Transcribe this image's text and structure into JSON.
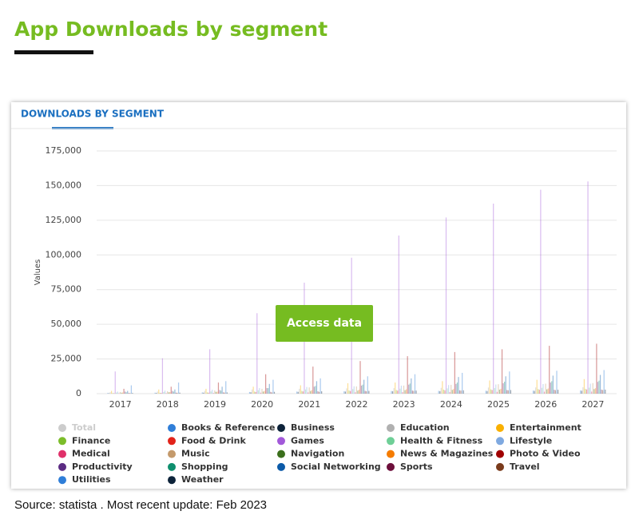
{
  "header": {
    "title": "App Downloads by segment"
  },
  "chart_data": {
    "type": "bar",
    "tab_title": "DOWNLOADS BY SEGMENT",
    "ylabel": "Values",
    "categories": [
      "2017",
      "2018",
      "2019",
      "2020",
      "2021",
      "2022",
      "2023",
      "2024",
      "2025",
      "2026",
      "2027"
    ],
    "ylim": [
      0,
      175000
    ],
    "yticks": [
      0,
      {
        "value": 25000,
        "label": "25,000"
      },
      {
        "value": 50000,
        "label": "50,000"
      },
      {
        "value": 75000,
        "label": "75,000"
      },
      {
        "value": 100000,
        "label": "100,000"
      },
      {
        "value": 125000,
        "label": "125,000"
      },
      {
        "value": 150000,
        "label": "150,000"
      },
      {
        "value": 175000,
        "label": "175,000"
      }
    ],
    "grid": true,
    "series": [
      {
        "name": "Total",
        "color": "#cccccc",
        "visible": false,
        "values": [
          null,
          null,
          null,
          null,
          null,
          null,
          null,
          null,
          null,
          null,
          null
        ]
      },
      {
        "name": "Books & Reference",
        "color": "#2f7ed8",
        "values": [
          500,
          700,
          900,
          1200,
          1500,
          1700,
          1900,
          2000,
          2100,
          2200,
          2300
        ]
      },
      {
        "name": "Business",
        "color": "#0d233a",
        "values": [
          300,
          500,
          700,
          1000,
          1300,
          1500,
          1700,
          1800,
          1900,
          2000,
          2100
        ]
      },
      {
        "name": "Education",
        "color": "#b0b0b0",
        "values": [
          1000,
          1500,
          2000,
          3000,
          3500,
          3800,
          4000,
          4200,
          4400,
          4500,
          4600
        ]
      },
      {
        "name": "Entertainment",
        "color": "#f9b000",
        "values": [
          2000,
          3000,
          3500,
          5000,
          6000,
          7500,
          8000,
          9000,
          9500,
          10000,
          10500
        ]
      },
      {
        "name": "Finance",
        "color": "#7cbd2a",
        "values": [
          400,
          600,
          900,
          1500,
          2000,
          2300,
          2600,
          2900,
          3100,
          3300,
          3500
        ]
      },
      {
        "name": "Food & Drink",
        "color": "#e2231a",
        "values": [
          300,
          500,
          700,
          1200,
          1600,
          1900,
          2200,
          2400,
          2600,
          2800,
          3000
        ]
      },
      {
        "name": "Games",
        "color": "#a259d9",
        "values": [
          16000,
          25500,
          32000,
          58000,
          80000,
          98000,
          114000,
          127000,
          137000,
          147000,
          153000
        ]
      },
      {
        "name": "Health & Fitness",
        "color": "#6fcf97",
        "values": [
          800,
          1200,
          1600,
          2500,
          3000,
          3300,
          3600,
          3800,
          4000,
          4200,
          4300
        ]
      },
      {
        "name": "Lifestyle",
        "color": "#7fa9e0",
        "values": [
          1500,
          2200,
          2800,
          4000,
          4800,
          5300,
          5800,
          6200,
          6600,
          6900,
          7200
        ]
      },
      {
        "name": "Medical",
        "color": "#e0306a",
        "values": [
          300,
          400,
          500,
          700,
          900,
          1000,
          1100,
          1200,
          1300,
          1400,
          1500
        ]
      },
      {
        "name": "Music",
        "color": "#c49a6c",
        "values": [
          1200,
          1800,
          2300,
          3500,
          4500,
          5200,
          5800,
          6300,
          6800,
          7200,
          7600
        ]
      },
      {
        "name": "Navigation",
        "color": "#3b6f1c",
        "values": [
          700,
          1000,
          1300,
          1500,
          1900,
          2200,
          2500,
          2700,
          2900,
          3100,
          3300
        ]
      },
      {
        "name": "News & Magazines",
        "color": "#f57c00",
        "values": [
          800,
          1100,
          1400,
          2000,
          2500,
          2800,
          3100,
          3300,
          3500,
          3700,
          3900
        ]
      },
      {
        "name": "Photo & Video",
        "color": "#a00000",
        "values": [
          3500,
          5000,
          8000,
          14000,
          19500,
          23500,
          27000,
          30000,
          32000,
          34500,
          36000
        ]
      },
      {
        "name": "Productivity",
        "color": "#5b2c83",
        "values": [
          1500,
          2000,
          2600,
          4000,
          5000,
          5800,
          6500,
          7000,
          7500,
          8000,
          8500
        ]
      },
      {
        "name": "Shopping",
        "color": "#0f8f6e",
        "values": [
          1000,
          1500,
          2200,
          4000,
          5500,
          6500,
          7300,
          8000,
          8600,
          9000,
          9400
        ]
      },
      {
        "name": "Social Networking",
        "color": "#0b5aa8",
        "values": [
          2000,
          3000,
          5000,
          7000,
          9000,
          10000,
          11000,
          12000,
          12500,
          13000,
          13500
        ]
      },
      {
        "name": "Sports",
        "color": "#6d0f3b",
        "values": [
          500,
          700,
          900,
          1300,
          1700,
          2000,
          2200,
          2400,
          2600,
          2800,
          2900
        ]
      },
      {
        "name": "Travel",
        "color": "#7a3b1c",
        "values": [
          400,
          600,
          800,
          900,
          1300,
          1700,
          2000,
          2200,
          2400,
          2500,
          2600
        ]
      },
      {
        "name": "Utilities",
        "color": "#2f7ed8",
        "values": [
          6000,
          8000,
          9000,
          10000,
          11000,
          12500,
          14000,
          15000,
          16000,
          16500,
          17000
        ]
      },
      {
        "name": "Weather",
        "color": "#0d233a",
        "values": [
          500,
          700,
          900,
          1300,
          1700,
          2000,
          2200,
          2400,
          2600,
          2800,
          2900
        ]
      }
    ]
  },
  "button": {
    "label": "Access data"
  },
  "source": "Source: statista . Most recent update: Feb 2023"
}
